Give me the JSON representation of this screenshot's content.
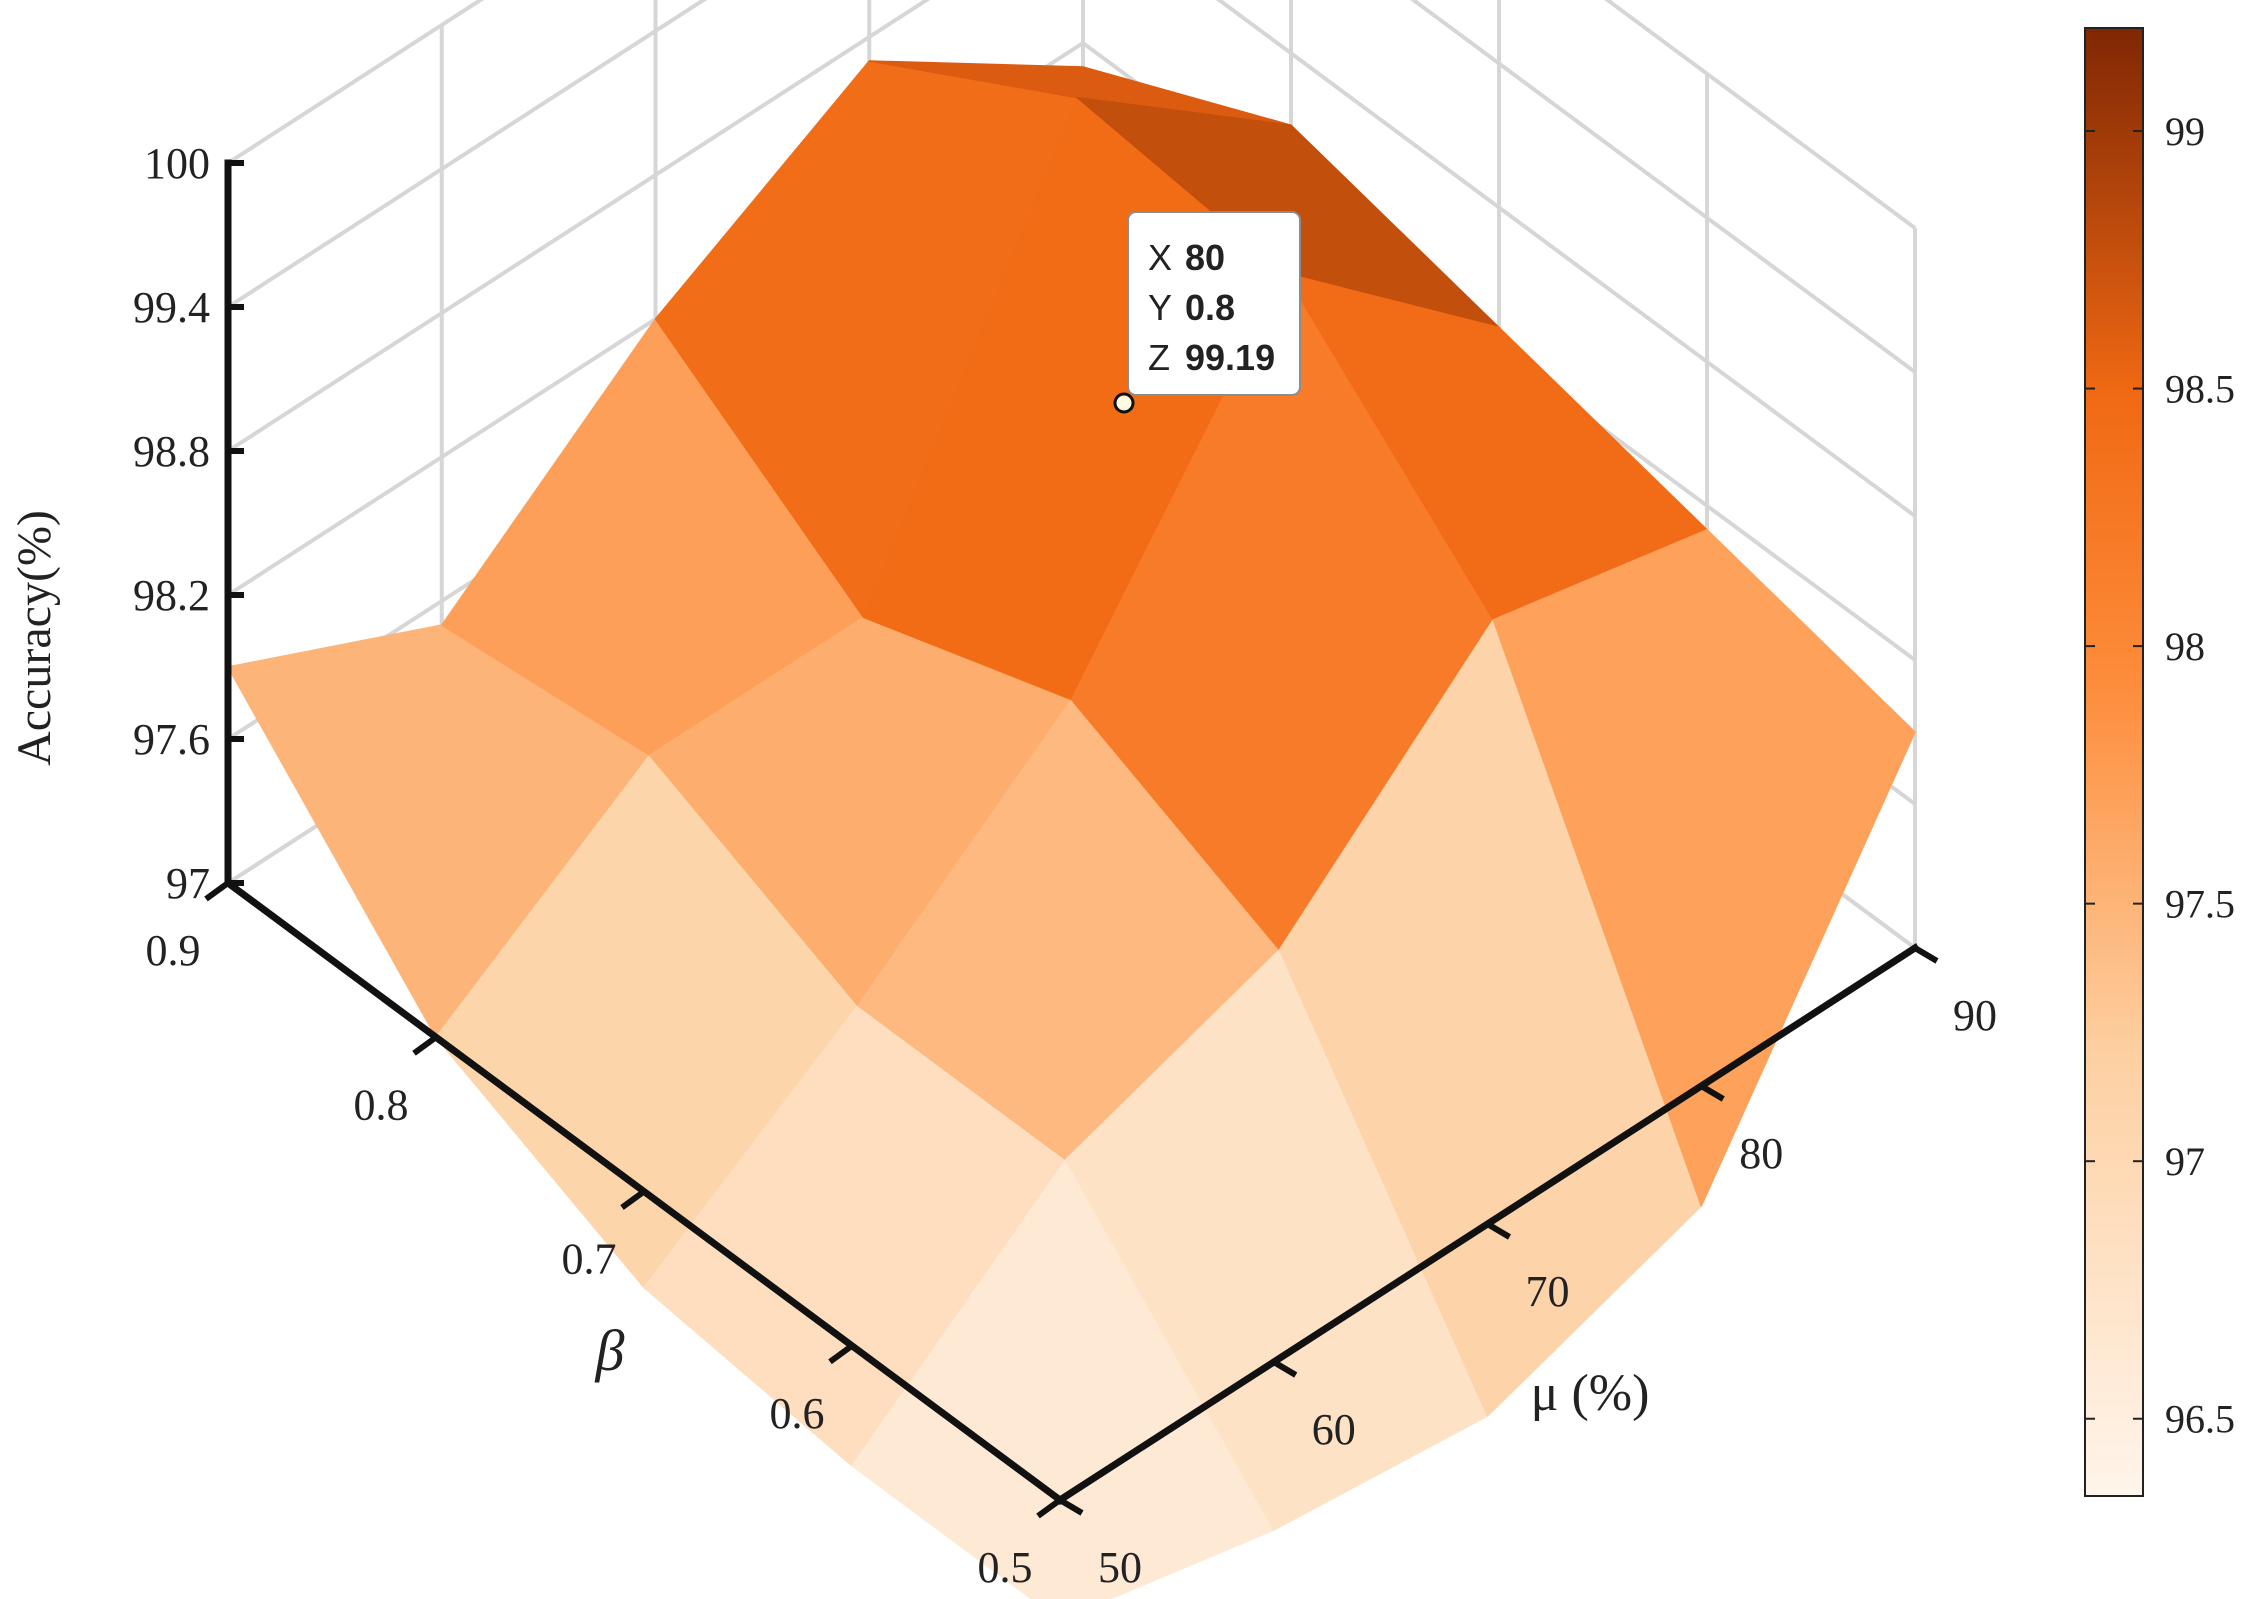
{
  "chart_data": {
    "type": "surface",
    "title": "",
    "xlabel": "μ (%)",
    "ylabel": "β",
    "zlabel": "Accuracy(%)",
    "x": [
      50,
      60,
      70,
      80,
      90
    ],
    "y": [
      0.5,
      0.6,
      0.7,
      0.8,
      0.9
    ],
    "x_tick_labels": [
      "50",
      "60",
      "70",
      "80",
      "90"
    ],
    "y_tick_labels": [
      "0.5",
      "0.6",
      "0.7",
      "0.8",
      "0.9"
    ],
    "z_ticks": [
      97,
      97.6,
      98.2,
      98.8,
      99.4,
      100
    ],
    "z_tick_labels": [
      "97",
      "97.6",
      "98.2",
      "98.8",
      "99.4",
      "100"
    ],
    "zlim": [
      97,
      100
    ],
    "z": [
      [
        96.5,
        96.3,
        96.2,
        96.5,
        97.9
      ],
      [
        96.5,
        97.2,
        97.5,
        98.3,
        98.1
      ],
      [
        96.6,
        97.2,
        97.9,
        99.1,
        98.3
      ],
      [
        97.0,
        97.6,
        97.6,
        99.19,
        98.5
      ],
      [
        97.9,
        97.5,
        98.2,
        98.7,
        98.1
      ]
    ],
    "colorbar": {
      "range": [
        96.35,
        99.2
      ],
      "ticks": [
        96.5,
        97,
        97.5,
        98,
        98.5,
        99
      ],
      "tick_labels": [
        "96.5",
        "97",
        "97.5",
        "98",
        "98.5",
        "99"
      ]
    },
    "colors": {
      "low": "#fff5eb",
      "mid_low": "#fdd0a2",
      "mid": "#fd8d3c",
      "mid_high": "#f16913",
      "high": "#7f2704"
    },
    "datatip": {
      "x_label": "X",
      "x_value": "80",
      "y_label": "Y",
      "y_value": "0.8",
      "z_label": "Z",
      "z_value": "99.19",
      "value_color": "#0097f5"
    }
  }
}
